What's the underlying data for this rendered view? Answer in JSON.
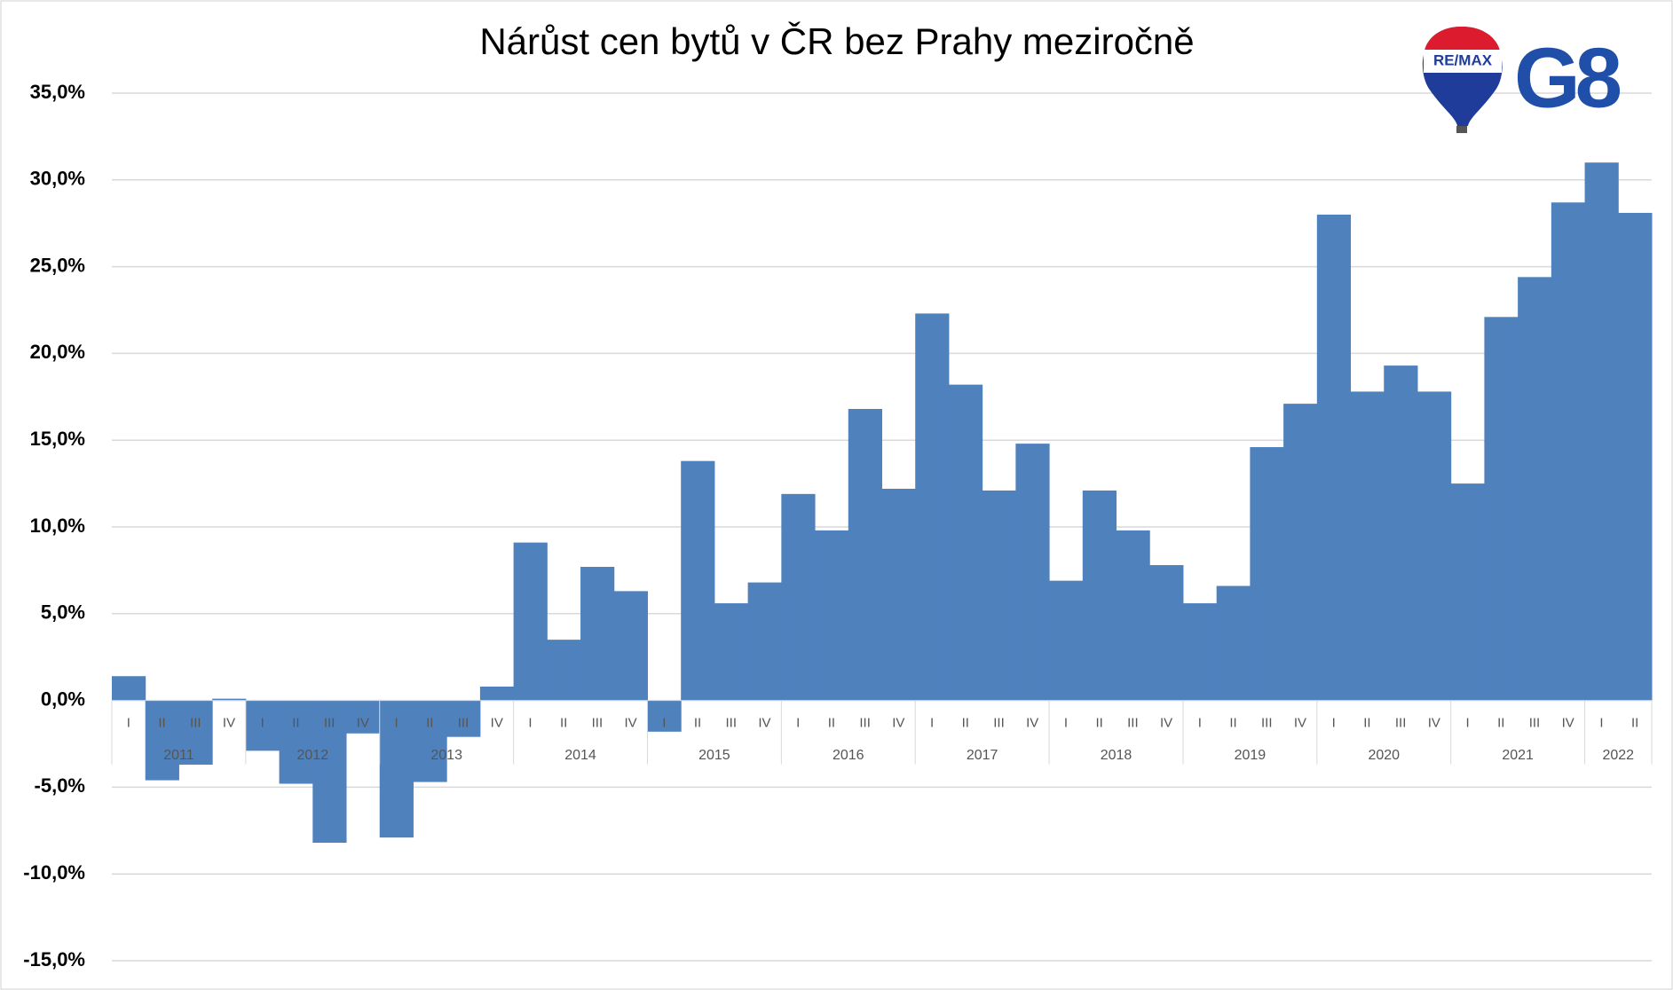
{
  "chart_data": {
    "type": "bar",
    "title": "Nárůst cen bytů v ČR bez Prahy meziročně",
    "logo": {
      "brand": "RE/MAX",
      "mark": "G8"
    },
    "categories": [
      "I",
      "II",
      "III",
      "IV",
      "I",
      "II",
      "III",
      "IV",
      "I",
      "II",
      "III",
      "IV",
      "I",
      "II",
      "III",
      "IV",
      "I",
      "II",
      "III",
      "IV",
      "I",
      "II",
      "III",
      "IV",
      "I",
      "II",
      "III",
      "IV",
      "I",
      "II",
      "III",
      "IV",
      "I",
      "II",
      "III",
      "IV",
      "I",
      "II",
      "III",
      "IV",
      "I",
      "II",
      "III",
      "IV",
      "I",
      "II"
    ],
    "years": [
      "2011",
      "2012",
      "2013",
      "2014",
      "2015",
      "2016",
      "2017",
      "2018",
      "2019",
      "2020",
      "2021",
      "2022"
    ],
    "values": [
      1.4,
      -4.6,
      -3.7,
      0.1,
      -2.9,
      -4.8,
      -8.2,
      -1.9,
      -7.9,
      -4.7,
      -2.1,
      0.8,
      9.1,
      3.5,
      7.7,
      6.3,
      -1.8,
      13.8,
      5.6,
      6.8,
      11.9,
      9.8,
      16.8,
      12.2,
      22.3,
      18.2,
      12.1,
      14.8,
      6.9,
      12.1,
      9.8,
      7.8,
      5.6,
      6.6,
      14.6,
      17.1,
      28.0,
      17.8,
      19.3,
      17.8,
      12.5,
      22.1,
      24.4,
      28.7,
      31.0,
      28.1
    ],
    "color": "#4f81bd",
    "ylim": [
      -15,
      35
    ],
    "yticks": [
      {
        "value": -15,
        "label": "-15,0%"
      },
      {
        "value": -10,
        "label": "-10,0%"
      },
      {
        "value": -5,
        "label": "-5,0%"
      },
      {
        "value": 0,
        "label": "0,0%"
      },
      {
        "value": 5,
        "label": "5,0%"
      },
      {
        "value": 10,
        "label": "10,0%"
      },
      {
        "value": 15,
        "label": "15,0%"
      },
      {
        "value": 20,
        "label": "20,0%"
      },
      {
        "value": 25,
        "label": "25,0%"
      },
      {
        "value": 30,
        "label": "30,0%"
      },
      {
        "value": 35,
        "label": "35,0%"
      }
    ],
    "grid": true
  }
}
